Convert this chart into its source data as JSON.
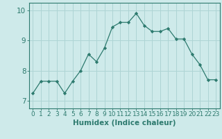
{
  "x": [
    0,
    1,
    2,
    3,
    4,
    5,
    6,
    7,
    8,
    9,
    10,
    11,
    12,
    13,
    14,
    15,
    16,
    17,
    18,
    19,
    20,
    21,
    22,
    23
  ],
  "y": [
    7.25,
    7.65,
    7.65,
    7.65,
    7.25,
    7.65,
    8.0,
    8.55,
    8.3,
    8.75,
    9.45,
    9.6,
    9.6,
    9.9,
    9.5,
    9.3,
    9.3,
    9.4,
    9.05,
    9.05,
    8.55,
    8.2,
    7.7,
    7.7
  ],
  "line_color": "#2d7a6e",
  "marker": "D",
  "marker_size": 2.2,
  "bg_color": "#ceeaea",
  "grid_color": "#aed4d4",
  "xlabel": "Humidex (Indice chaleur)",
  "ylim": [
    6.75,
    10.25
  ],
  "xlim": [
    -0.5,
    23.5
  ],
  "yticks": [
    7,
    8,
    9,
    10
  ],
  "xticks": [
    0,
    1,
    2,
    3,
    4,
    5,
    6,
    7,
    8,
    9,
    10,
    11,
    12,
    13,
    14,
    15,
    16,
    17,
    18,
    19,
    20,
    21,
    22,
    23
  ],
  "axis_color": "#2d7a6e",
  "tick_font_size": 6.5,
  "xlabel_font_size": 7.5
}
